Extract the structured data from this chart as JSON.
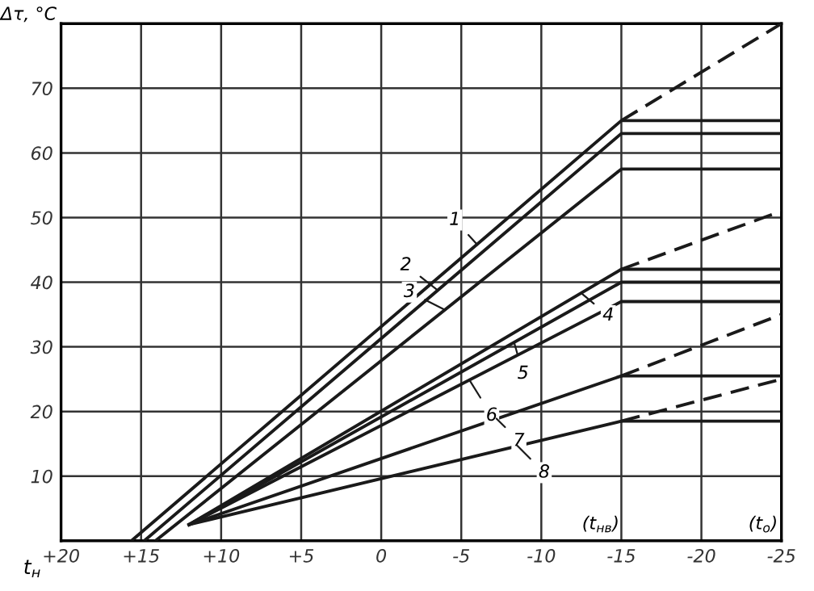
{
  "chart_data": {
    "type": "line",
    "ylabel": "Δτ, °C",
    "xlabel": "t$_{н}$",
    "xlim": [
      20,
      -25
    ],
    "ylim": [
      0,
      80
    ],
    "xticks": [
      {
        "value": 20,
        "label": "+20"
      },
      {
        "value": 15,
        "label": "+15"
      },
      {
        "value": 10,
        "label": "+10"
      },
      {
        "value": 5,
        "label": "+5"
      },
      0,
      -5,
      -10,
      -15,
      -20,
      -25
    ],
    "yticks": [
      10,
      20,
      30,
      40,
      50,
      60,
      70
    ],
    "grid": true,
    "line_style": "solid",
    "marker": "none",
    "series": [
      {
        "color": "#1a1a1a",
        "x": [
          15.6,
          -15,
          -25
        ],
        "values": [
          0,
          65,
          65
        ]
      },
      {
        "color": "#1a1a1a",
        "x": [
          14.8,
          -15,
          -25
        ],
        "values": [
          0,
          63,
          63
        ]
      },
      {
        "color": "#1a1a1a",
        "x": [
          14.1,
          -15,
          -25
        ],
        "values": [
          0,
          57.5,
          57.5
        ]
      },
      {
        "color": "#1a1a1a",
        "x": [
          12,
          -15,
          -25
        ],
        "values": [
          2.5,
          42,
          42
        ]
      },
      {
        "color": "#1a1a1a",
        "x": [
          12,
          -15,
          -25
        ],
        "values": [
          2.5,
          40,
          40
        ]
      },
      {
        "color": "#1a1a1a",
        "x": [
          12,
          -15,
          -25
        ],
        "values": [
          2.5,
          37,
          37
        ]
      },
      {
        "color": "#1a1a1a",
        "x": [
          12,
          -15,
          -25
        ],
        "values": [
          2.5,
          25.5,
          25.5
        ]
      },
      {
        "color": "#1a1a1a",
        "x": [
          12,
          -15,
          -25
        ],
        "values": [
          2.5,
          18.5,
          18.5
        ]
      },
      {
        "color": "#1a1a1a",
        "x": [
          -15,
          -25
        ],
        "values": [
          65,
          80
        ],
        "line_style": "dashed"
      },
      {
        "color": "#1a1a1a",
        "x": [
          -15,
          -25
        ],
        "values": [
          42,
          51
        ],
        "line_style": "dashed"
      },
      {
        "color": "#1a1a1a",
        "x": [
          -15,
          -25
        ],
        "values": [
          25.5,
          35
        ],
        "line_style": "dashed"
      },
      {
        "color": "#1a1a1a",
        "x": [
          -15,
          -25
        ],
        "values": [
          18.5,
          25
        ],
        "line_style": "dashed"
      }
    ],
    "annotations": [
      {
        "text": "1",
        "x": -6,
        "y": 45.8
      },
      {
        "text": "2",
        "x": -3.5,
        "y": 38.8
      },
      {
        "text": "3",
        "x": -4,
        "y": 35.7
      },
      {
        "text": "4",
        "x": -12.5,
        "y": 38.3
      },
      {
        "text": "5",
        "x": -8.3,
        "y": 30.7
      },
      {
        "text": "6",
        "x": -5.5,
        "y": 24.9
      },
      {
        "text": "7",
        "x": -7.2,
        "y": 18.9
      },
      {
        "text": "8",
        "x": -8.5,
        "y": 14.7
      },
      "(t$_{нв}$)",
      "(t$_{о}$)"
    ]
  }
}
